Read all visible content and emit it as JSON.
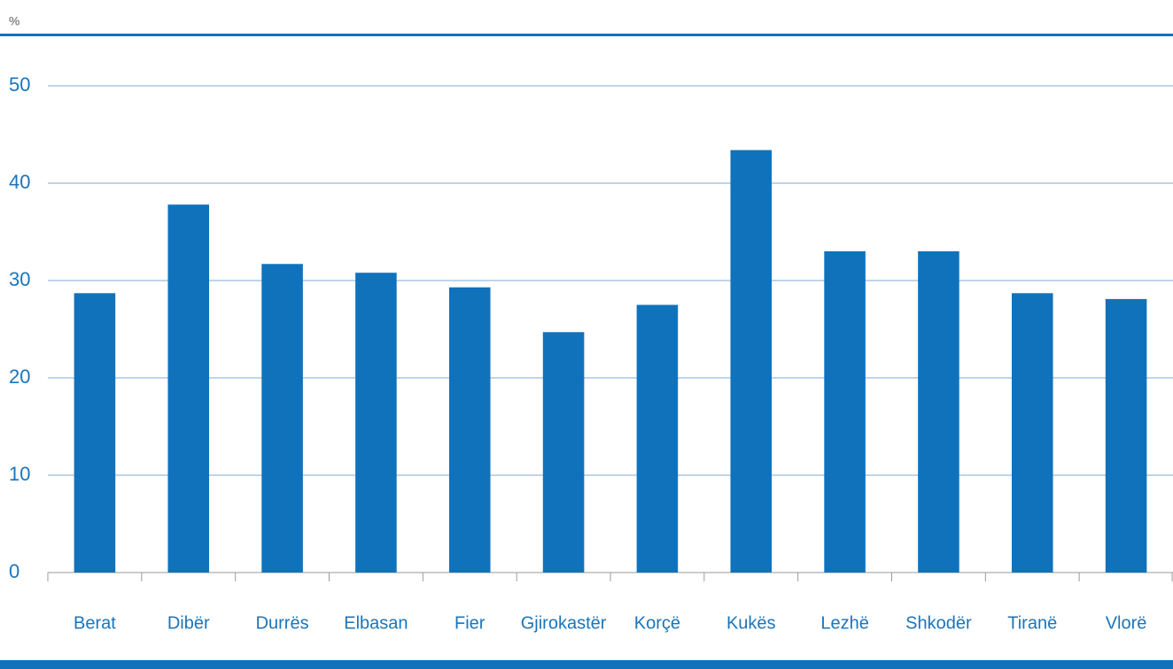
{
  "chart_data": {
    "type": "bar",
    "y_label": "%",
    "categories": [
      "Berat",
      "Dibër",
      "Durrës",
      "Elbasan",
      "Fier",
      "Gjirokastër",
      "Korçë",
      "Kukës",
      "Lezhë",
      "Shkodër",
      "Tiranë",
      "Vlorë"
    ],
    "values": [
      28.7,
      37.8,
      31.7,
      30.8,
      29.3,
      24.7,
      27.5,
      43.4,
      33.0,
      33.0,
      28.7,
      28.1
    ],
    "color": "#1172bc",
    "ylim": [
      0,
      50
    ],
    "yticks": [
      0,
      10,
      20,
      30,
      40,
      50
    ],
    "grid": true
  }
}
